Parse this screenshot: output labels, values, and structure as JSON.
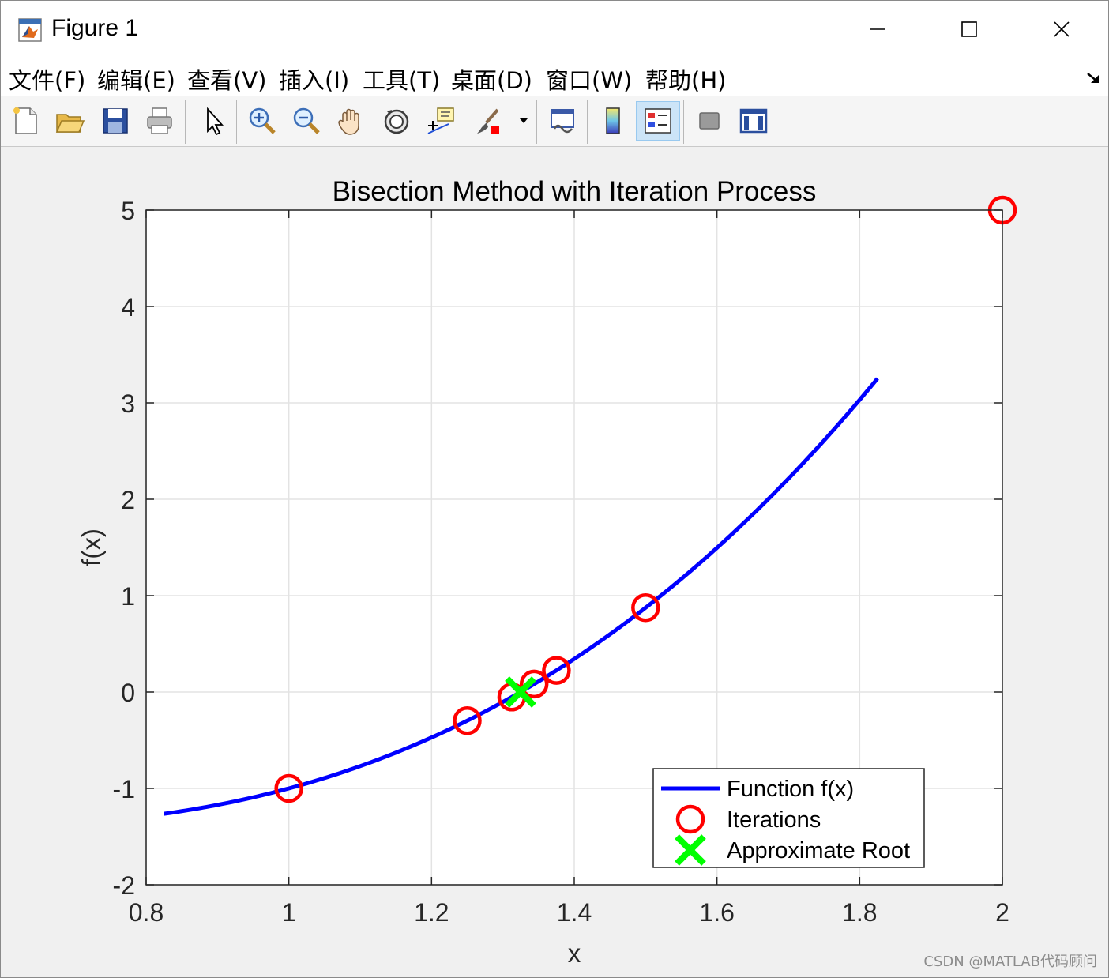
{
  "window": {
    "title": "Figure 1",
    "minimize_glyph": "—",
    "maximize_glyph": "☐",
    "close_glyph": "✕"
  },
  "menu": {
    "items": [
      {
        "label": "文件(F)"
      },
      {
        "label": "编辑(E)"
      },
      {
        "label": "查看(V)"
      },
      {
        "label": "插入(I)"
      },
      {
        "label": "工具(T)"
      },
      {
        "label": "桌面(D)"
      },
      {
        "label": "窗口(W)"
      },
      {
        "label": "帮助(H)"
      }
    ]
  },
  "toolbar": {
    "buttons": [
      {
        "icon": "new-figure-icon"
      },
      {
        "icon": "open-file-icon"
      },
      {
        "icon": "save-icon"
      },
      {
        "icon": "print-icon"
      },
      {
        "icon": "edit-plot-arrow-icon"
      },
      {
        "icon": "zoom-in-icon"
      },
      {
        "icon": "zoom-out-icon"
      },
      {
        "icon": "pan-hand-icon"
      },
      {
        "icon": "rotate-3d-icon"
      },
      {
        "icon": "data-cursor-icon"
      },
      {
        "icon": "brush-icon"
      },
      {
        "icon": "link-plot-icon"
      },
      {
        "icon": "insert-colorbar-icon"
      },
      {
        "icon": "insert-legend-icon"
      },
      {
        "icon": "hide-plot-tools-icon"
      },
      {
        "icon": "show-plot-tools-icon"
      }
    ]
  },
  "colors": {
    "curve": "#0000ff",
    "iterations": "#ff0000",
    "root": "#00ff00",
    "axes_bg": "#ffffff",
    "figure_bg": "#f0f0f0",
    "grid": "#e3e3e3"
  },
  "chart_data": {
    "type": "line",
    "title": "Bisection Method with Iteration Process",
    "xlabel": "x",
    "ylabel": "f(x)",
    "xlim": [
      0.8,
      2
    ],
    "ylim": [
      -2,
      5
    ],
    "xticks": [
      "0.8",
      "1",
      "1.2",
      "1.4",
      "1.6",
      "1.8",
      "2"
    ],
    "yticks": [
      "-2",
      "-1",
      "0",
      "1",
      "2",
      "3",
      "4",
      "5"
    ],
    "grid": true,
    "legend_position": "bottom-right",
    "series": [
      {
        "name": "Function f(x)",
        "style": "line",
        "x_range": [
          0.825,
          1.825
        ],
        "function": "x^3 - x - 1"
      },
      {
        "name": "Iterations",
        "style": "circle-markers",
        "x": [
          1,
          1.25,
          1.3125,
          1.34375,
          1.375,
          1.5,
          2
        ],
        "y": [
          -1,
          -0.296875,
          -0.051514,
          0.082611,
          0.224609,
          0.875,
          5
        ]
      },
      {
        "name": "Approximate Root",
        "style": "x-marker",
        "x": [
          1.3247
        ],
        "y": [
          0
        ]
      }
    ]
  },
  "watermark": "CSDN @MATLAB代码顾问"
}
